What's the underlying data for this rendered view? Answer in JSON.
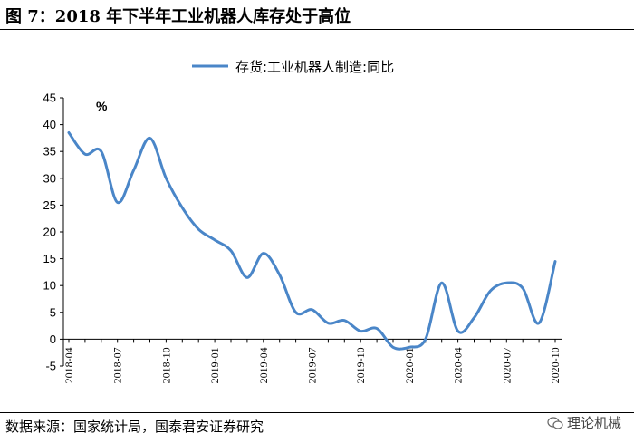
{
  "figure": {
    "title": "图 7：2018 年下半年工业机器人库存处于高位",
    "source": "数据来源：国家统计局，国泰君安证券研究",
    "watermark": "理论机械"
  },
  "chart_data": {
    "type": "line",
    "title": "",
    "xlabel": "",
    "ylabel": "",
    "unit": "%",
    "ylim": [
      -5,
      45
    ],
    "yticks": [
      -5,
      0,
      5,
      10,
      15,
      20,
      25,
      30,
      35,
      40,
      45
    ],
    "grid": false,
    "legend": "top",
    "x_tick_labels": [
      "2018-04",
      "2018-07",
      "2018-10",
      "2019-01",
      "2019-04",
      "2019-07",
      "2019-10",
      "2020-01",
      "2020-04",
      "2020-07",
      "2020-10"
    ],
    "x": [
      "2018-04",
      "2018-05",
      "2018-06",
      "2018-07",
      "2018-08",
      "2018-09",
      "2018-10",
      "2018-11",
      "2018-12",
      "2019-01",
      "2019-02",
      "2019-03",
      "2019-04",
      "2019-05",
      "2019-06",
      "2019-07",
      "2019-08",
      "2019-09",
      "2019-10",
      "2019-11",
      "2019-12",
      "2020-01",
      "2020-02",
      "2020-03",
      "2020-04",
      "2020-05",
      "2020-06",
      "2020-07",
      "2020-08",
      "2020-09",
      "2020-10"
    ],
    "series": [
      {
        "name": "存货:工业机器人制造:同比",
        "color": "#4a86c8",
        "values": [
          38.5,
          34.5,
          35.0,
          25.5,
          31.5,
          37.5,
          30.0,
          24.5,
          20.5,
          18.5,
          16.5,
          11.5,
          16.0,
          12.0,
          5.0,
          5.5,
          3.0,
          3.5,
          1.5,
          2.0,
          -1.5,
          -1.5,
          0.0,
          10.5,
          1.5,
          4.0,
          9.0,
          10.5,
          9.5,
          3.0,
          14.5
        ]
      }
    ]
  }
}
